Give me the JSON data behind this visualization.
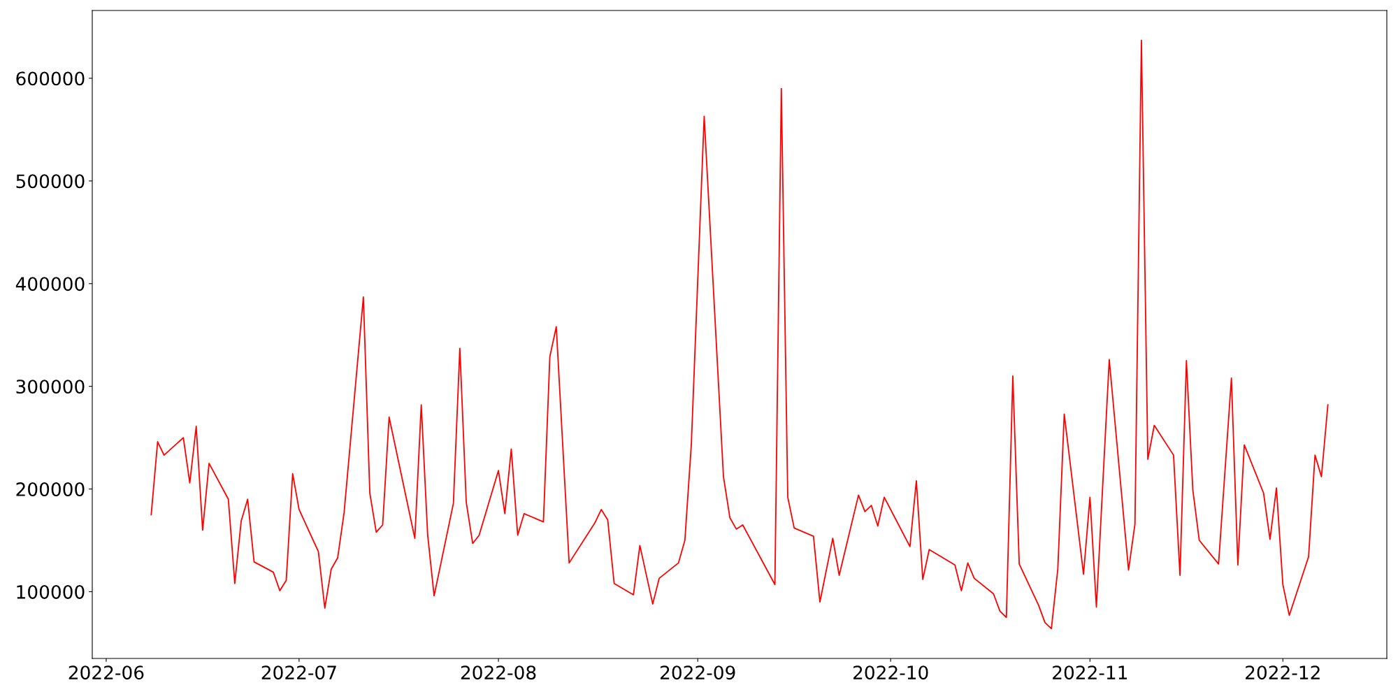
{
  "chart_data": {
    "type": "line",
    "x": [
      "2022-06-08",
      "2022-06-09",
      "2022-06-10",
      "2022-06-13",
      "2022-06-14",
      "2022-06-15",
      "2022-06-16",
      "2022-06-17",
      "2022-06-20",
      "2022-06-21",
      "2022-06-22",
      "2022-06-23",
      "2022-06-24",
      "2022-06-27",
      "2022-06-28",
      "2022-06-29",
      "2022-06-30",
      "2022-07-01",
      "2022-07-04",
      "2022-07-05",
      "2022-07-06",
      "2022-07-07",
      "2022-07-08",
      "2022-07-11",
      "2022-07-12",
      "2022-07-13",
      "2022-07-14",
      "2022-07-15",
      "2022-07-19",
      "2022-07-20",
      "2022-07-21",
      "2022-07-22",
      "2022-07-25",
      "2022-07-26",
      "2022-07-27",
      "2022-07-28",
      "2022-07-29",
      "2022-08-01",
      "2022-08-02",
      "2022-08-03",
      "2022-08-04",
      "2022-08-05",
      "2022-08-08",
      "2022-08-09",
      "2022-08-10",
      "2022-08-12",
      "2022-08-16",
      "2022-08-17",
      "2022-08-18",
      "2022-08-19",
      "2022-08-22",
      "2022-08-23",
      "2022-08-25",
      "2022-08-26",
      "2022-08-29",
      "2022-08-30",
      "2022-08-31",
      "2022-09-02",
      "2022-09-05",
      "2022-09-06",
      "2022-09-07",
      "2022-09-08",
      "2022-09-13",
      "2022-09-14",
      "2022-09-15",
      "2022-09-16",
      "2022-09-19",
      "2022-09-20",
      "2022-09-22",
      "2022-09-23",
      "2022-09-26",
      "2022-09-27",
      "2022-09-28",
      "2022-09-29",
      "2022-09-30",
      "2022-10-04",
      "2022-10-05",
      "2022-10-06",
      "2022-10-07",
      "2022-10-11",
      "2022-10-12",
      "2022-10-13",
      "2022-10-14",
      "2022-10-17",
      "2022-10-18",
      "2022-10-19",
      "2022-10-20",
      "2022-10-21",
      "2022-10-24",
      "2022-10-25",
      "2022-10-26",
      "2022-10-27",
      "2022-10-28",
      "2022-10-31",
      "2022-11-01",
      "2022-11-02",
      "2022-11-04",
      "2022-11-07",
      "2022-11-08",
      "2022-11-09",
      "2022-11-10",
      "2022-11-11",
      "2022-11-14",
      "2022-11-15",
      "2022-11-16",
      "2022-11-17",
      "2022-11-18",
      "2022-11-21",
      "2022-11-23",
      "2022-11-24",
      "2022-11-25",
      "2022-11-28",
      "2022-11-29",
      "2022-11-30",
      "2022-12-01",
      "2022-12-02",
      "2022-12-05",
      "2022-12-06",
      "2022-12-07",
      "2022-12-08"
    ],
    "series": [
      {
        "color": "#ff0000",
        "values": [
          175000,
          246000,
          233000,
          250000,
          206000,
          261000,
          160000,
          225000,
          190000,
          108000,
          169000,
          190000,
          129000,
          119000,
          101000,
          111000,
          215000,
          180000,
          139000,
          84000,
          122000,
          133000,
          177000,
          387000,
          196000,
          158000,
          165000,
          270000,
          152000,
          282000,
          155000,
          96000,
          186000,
          337000,
          187000,
          147000,
          155000,
          218000,
          176000,
          239000,
          155000,
          176000,
          168000,
          329000,
          358000,
          128000,
          167000,
          180000,
          170000,
          108000,
          97000,
          145000,
          88000,
          113000,
          128000,
          150000,
          243000,
          563000,
          212000,
          172000,
          161000,
          165000,
          107000,
          590000,
          192000,
          162000,
          154000,
          90000,
          152000,
          116000,
          194000,
          178000,
          184000,
          164000,
          192000,
          144000,
          208000,
          112000,
          141000,
          126000,
          101000,
          128000,
          113000,
          98000,
          81000,
          75000,
          310000,
          127000,
          87000,
          70000,
          64000,
          122000,
          273000,
          117000,
          192000,
          85000,
          326000,
          121000,
          166000,
          637000,
          229000,
          262000,
          233000,
          116000,
          325000,
          199000,
          150000,
          127000,
          308000,
          126000,
          243000,
          196000,
          151000,
          201000,
          107000,
          77000,
          134000,
          233000,
          212000,
          282000
        ]
      }
    ],
    "xlim": [
      "2022-05-29T20:00",
      "2022-12-17T04:00"
    ],
    "xticks": [
      {
        "value": "2022-06-01",
        "label": "2022-06"
      },
      {
        "value": "2022-07-01",
        "label": "2022-07"
      },
      {
        "value": "2022-08-01",
        "label": "2022-08"
      },
      {
        "value": "2022-09-01",
        "label": "2022-09"
      },
      {
        "value": "2022-10-01",
        "label": "2022-10"
      },
      {
        "value": "2022-11-01",
        "label": "2022-11"
      },
      {
        "value": "2022-12-01",
        "label": "2022-12"
      }
    ],
    "ylim": [
      35000,
      666000
    ],
    "yticks": [
      100000,
      200000,
      300000,
      400000,
      500000,
      600000
    ],
    "grid": false,
    "marker": "none",
    "line_style": "solid"
  }
}
